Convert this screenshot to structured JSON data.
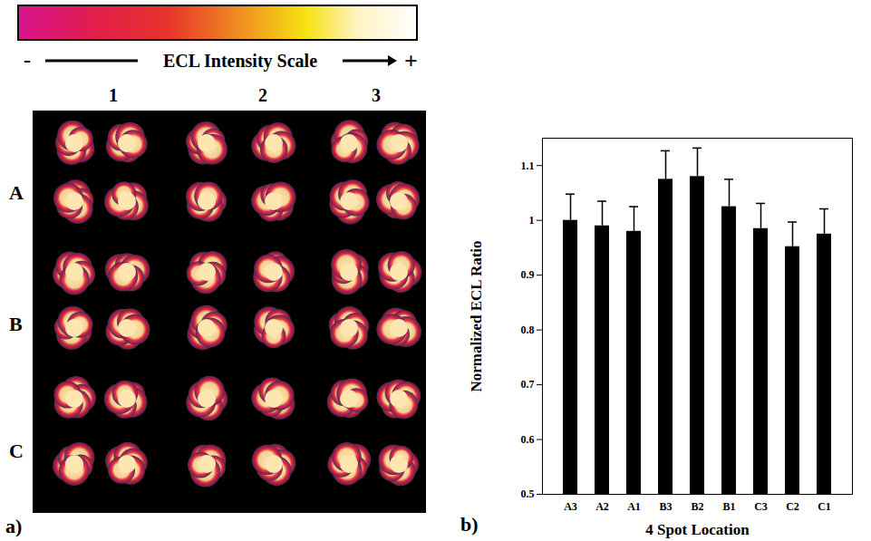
{
  "chart_data": {
    "type": "bar",
    "panel_label": "b)",
    "x_label": "4 Spot Location",
    "y_label": "Normalized ECL Ratio",
    "categories": [
      "A3",
      "A2",
      "A1",
      "B3",
      "B2",
      "B1",
      "C3",
      "C2",
      "C1"
    ],
    "values": [
      1.0,
      0.99,
      0.98,
      1.075,
      1.08,
      1.025,
      0.985,
      0.952,
      0.975
    ],
    "errors": [
      0.048,
      0.045,
      0.045,
      0.052,
      0.052,
      0.05,
      0.046,
      0.045,
      0.046
    ],
    "color": "#000000",
    "ylim": [
      0.5,
      1.15
    ],
    "yticks": [
      0.5,
      0.6,
      0.7,
      0.8,
      0.9,
      1,
      1.1
    ]
  },
  "image_panel": {
    "panel_label": "a)",
    "scale_title": "ECL Intensity Scale",
    "scale_low": "-",
    "scale_high": "+",
    "columns": [
      "1",
      "2",
      "3"
    ],
    "rows": [
      "A",
      "B",
      "C"
    ]
  }
}
